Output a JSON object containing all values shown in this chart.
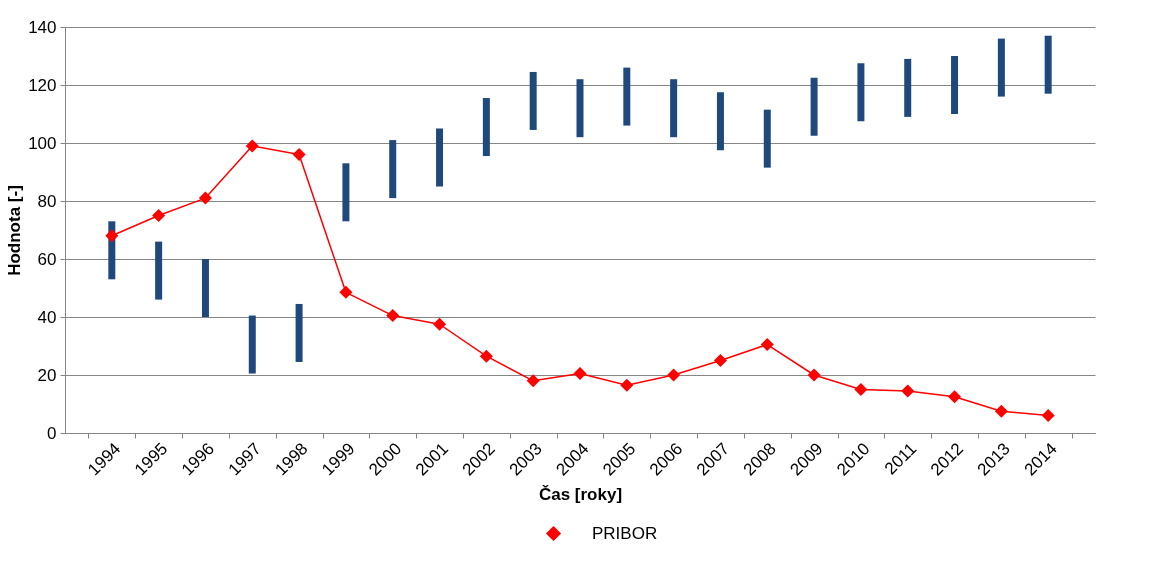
{
  "chart_data": {
    "type": "bar",
    "xlabel": "Čas [roky]",
    "ylabel": "Hodnota [-]",
    "categories": [
      "1994",
      "1995",
      "1996",
      "1997",
      "1998",
      "1999",
      "2000",
      "2001",
      "2002",
      "2003",
      "2004",
      "2005",
      "2006",
      "2007",
      "2008",
      "2009",
      "2010",
      "2011",
      "2012",
      "2013",
      "2014"
    ],
    "series": [
      {
        "color": "#1f497d",
        "base": [
          53,
          46,
          40,
          20.5,
          24.5,
          73,
          81,
          85,
          95.5,
          104.5,
          102,
          106,
          102,
          97.5,
          91.5,
          102.5,
          107.5,
          109,
          110,
          116,
          117
        ],
        "values": [
          20,
          20,
          20,
          20,
          20,
          20,
          20,
          20,
          20,
          20,
          20,
          20,
          20,
          20,
          20,
          20,
          20,
          20,
          20,
          20,
          20
        ]
      },
      {
        "type": "line",
        "name": "PRIBOR",
        "color": "#ff0000",
        "values": [
          68,
          75,
          81,
          99,
          96,
          48.5,
          40.5,
          37.5,
          26.5,
          18,
          20.5,
          16.5,
          20,
          25,
          30.5,
          20,
          15,
          14.5,
          12.5,
          7.5,
          6
        ]
      }
    ],
    "ylim": [
      0,
      140
    ],
    "yticks": [
      0,
      20,
      40,
      60,
      80,
      100,
      120,
      140
    ],
    "grid": "y",
    "legend": "bottom",
    "marker": "diamond",
    "line_style": "solid"
  }
}
